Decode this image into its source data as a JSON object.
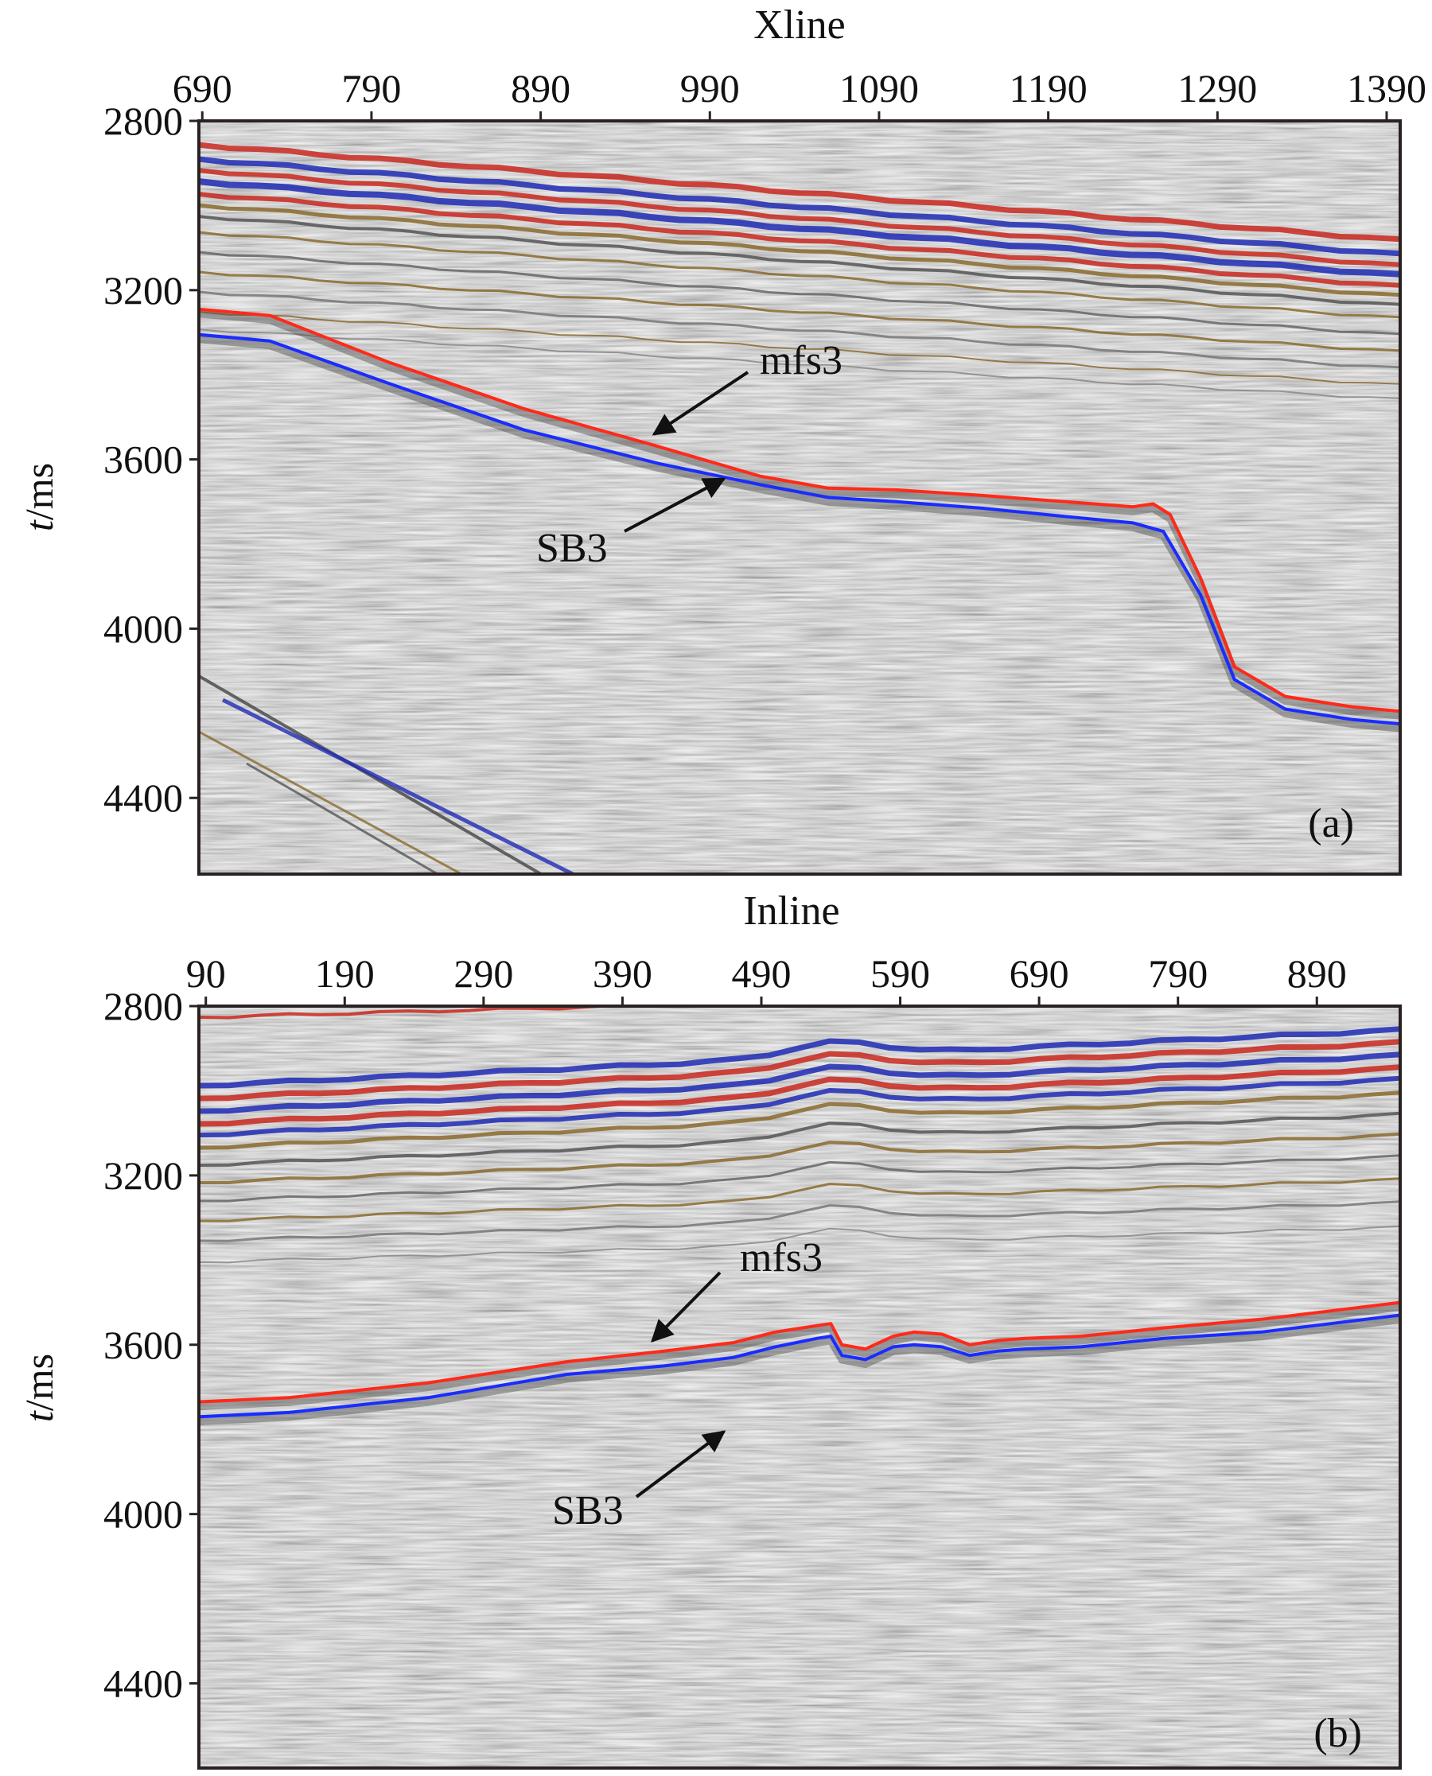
{
  "colors": {
    "mfs3": "#ff2a1a",
    "SB3": "#1a2cff",
    "reflector_red": "#c8281e",
    "reflector_blue": "#1e2ab4",
    "reflector_brown": "#8a6a2e",
    "background": "#dcdcdc",
    "frame": "#2a2222"
  },
  "chart_data": [
    {
      "type": "line",
      "panel_label": "(a)",
      "xlabel": "Xline",
      "ylabel_italic": "t",
      "ylabel_rest": "/ms",
      "x_ticks": [
        690,
        790,
        890,
        990,
        1090,
        1190,
        1290,
        1390
      ],
      "y_ticks": [
        2800,
        3200,
        3600,
        4000,
        4400
      ],
      "xlim": [
        688,
        1398
      ],
      "ylim": [
        2800,
        4580
      ],
      "y_inverted": true,
      "series": [
        {
          "name": "mfs3",
          "x": [
            688,
            730,
            800,
            880,
            960,
            1020,
            1060,
            1100,
            1150,
            1200,
            1240,
            1252,
            1262,
            1280,
            1300,
            1330,
            1370,
            1398
          ],
          "values": [
            3245,
            3260,
            3370,
            3480,
            3570,
            3640,
            3668,
            3672,
            3685,
            3700,
            3712,
            3705,
            3730,
            3880,
            4090,
            4160,
            4185,
            4195
          ]
        },
        {
          "name": "SB3",
          "x": [
            688,
            730,
            800,
            880,
            960,
            1020,
            1060,
            1100,
            1150,
            1200,
            1240,
            1258,
            1280,
            1300,
            1330,
            1370,
            1398
          ],
          "values": [
            3305,
            3320,
            3420,
            3530,
            3610,
            3660,
            3690,
            3700,
            3715,
            3735,
            3750,
            3770,
            3920,
            4120,
            4190,
            4215,
            4225
          ]
        }
      ],
      "annotations": [
        {
          "text": "mfs3",
          "target": [
            865,
            3560
          ]
        },
        {
          "text": "SB3",
          "target": [
            1000,
            3645
          ]
        }
      ]
    },
    {
      "type": "line",
      "panel_label": "(b)",
      "xlabel": "Inline",
      "ylabel_italic": "t",
      "ylabel_rest": "/ms",
      "x_ticks": [
        90,
        190,
        290,
        390,
        490,
        590,
        690,
        790,
        890
      ],
      "y_ticks": [
        2800,
        3200,
        3600,
        4000,
        4400
      ],
      "xlim": [
        85,
        950
      ],
      "ylim": [
        2800,
        4600
      ],
      "y_inverted": true,
      "series": [
        {
          "name": "mfs3",
          "x": [
            85,
            150,
            250,
            350,
            420,
            470,
            500,
            530,
            540,
            548,
            565,
            585,
            600,
            620,
            640,
            660,
            680,
            720,
            780,
            850,
            900,
            950
          ],
          "values": [
            3735,
            3725,
            3690,
            3640,
            3615,
            3595,
            3570,
            3555,
            3550,
            3600,
            3610,
            3580,
            3570,
            3575,
            3600,
            3590,
            3585,
            3580,
            3560,
            3540,
            3520,
            3500
          ]
        },
        {
          "name": "SB3",
          "x": [
            85,
            150,
            250,
            350,
            420,
            470,
            500,
            530,
            540,
            548,
            565,
            585,
            600,
            620,
            640,
            660,
            680,
            720,
            780,
            850,
            900,
            950
          ],
          "values": [
            3770,
            3760,
            3725,
            3670,
            3650,
            3630,
            3605,
            3585,
            3580,
            3625,
            3635,
            3605,
            3600,
            3605,
            3625,
            3615,
            3610,
            3605,
            3585,
            3570,
            3550,
            3530
          ]
        }
      ],
      "annotations": [
        {
          "text": "mfs3",
          "target": [
            405,
            3625
          ]
        },
        {
          "text": "SB3",
          "target": [
            460,
            3650
          ]
        }
      ]
    }
  ]
}
